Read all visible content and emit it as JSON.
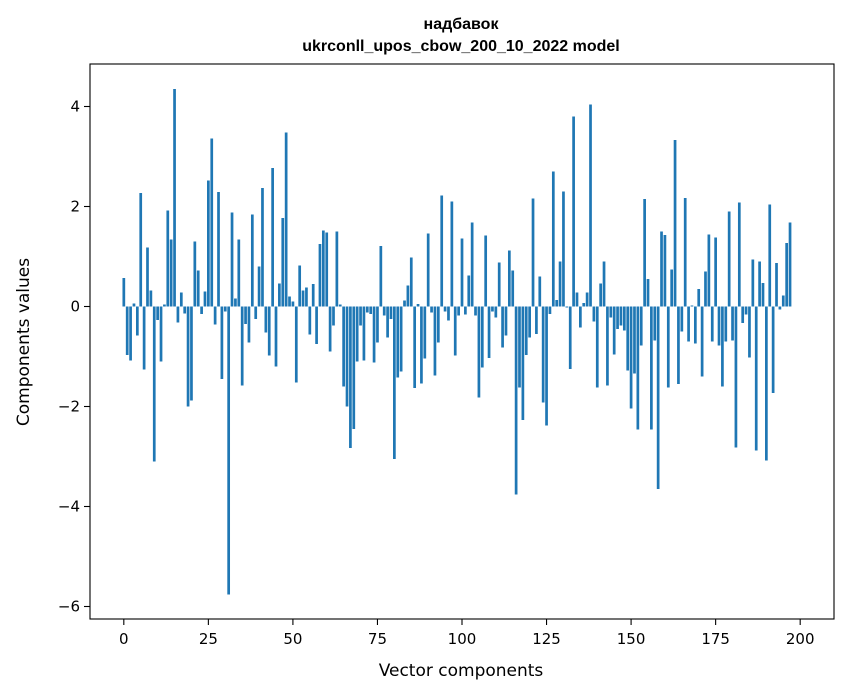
{
  "chart_data": {
    "type": "bar",
    "title": "надбавок",
    "subtitle": "ukrconll_upos_cbow_200_10_2022 model",
    "xlabel": "Vector components",
    "ylabel": "Components values",
    "xlim": [
      -10,
      210
    ],
    "ylim": [
      -6.25,
      4.85
    ],
    "xticks": [
      0,
      25,
      50,
      75,
      100,
      125,
      150,
      175,
      200
    ],
    "yticks": [
      -6,
      -4,
      -2,
      0,
      2,
      4
    ],
    "ytick_labels": [
      "−6",
      "−4",
      "−2",
      "0",
      "2",
      "4"
    ],
    "bar_color": "#1f77b4",
    "grid": false,
    "values": [
      0.57,
      -0.97,
      -1.08,
      0.06,
      -0.58,
      2.27,
      -1.26,
      1.18,
      0.32,
      -3.1,
      -0.27,
      -1.1,
      0.04,
      1.92,
      1.34,
      4.35,
      -0.32,
      0.28,
      -0.14,
      -2.0,
      -1.88,
      1.3,
      0.72,
      -0.15,
      0.3,
      2.52,
      3.36,
      -0.36,
      2.29,
      -1.45,
      -0.1,
      -5.76,
      1.88,
      0.16,
      1.34,
      -1.58,
      -0.35,
      -0.72,
      1.84,
      -0.25,
      0.8,
      2.37,
      -0.52,
      -0.98,
      2.77,
      -1.2,
      0.46,
      1.77,
      3.48,
      0.2,
      0.1,
      -1.52,
      0.82,
      0.32,
      0.38,
      -0.56,
      0.45,
      -0.75,
      1.25,
      1.52,
      1.48,
      -0.9,
      -0.38,
      1.5,
      0.04,
      -1.6,
      -2.0,
      -2.83,
      -2.45,
      -1.1,
      -0.38,
      -1.08,
      -0.12,
      -0.15,
      -1.12,
      -0.72,
      1.21,
      -0.18,
      -0.62,
      -0.25,
      -3.05,
      -1.42,
      -1.3,
      0.12,
      0.42,
      0.98,
      -1.63,
      0.05,
      -1.54,
      -1.04,
      1.46,
      -0.12,
      -1.38,
      -0.72,
      2.22,
      -0.1,
      -0.28,
      2.1,
      -0.98,
      -0.18,
      1.36,
      -0.16,
      0.62,
      1.68,
      -0.18,
      -1.82,
      -1.22,
      1.42,
      -1.03,
      -0.1,
      -0.22,
      0.88,
      -0.82,
      -0.58,
      1.12,
      0.72,
      -3.76,
      -1.62,
      -2.27,
      -0.97,
      -0.62,
      2.16,
      -0.55,
      0.6,
      -1.92,
      -2.38,
      -0.15,
      2.7,
      0.13,
      0.9,
      2.3,
      -0.02,
      -1.25,
      3.8,
      0.28,
      -0.42,
      0.07,
      0.28,
      4.04,
      -0.3,
      -1.62,
      0.46,
      0.9,
      -1.58,
      -0.22,
      -0.96,
      -0.45,
      -0.38,
      -0.48,
      -1.28,
      -2.04,
      -1.34,
      -2.46,
      -0.78,
      2.15,
      0.55,
      -2.46,
      -0.68,
      -3.65,
      1.5,
      1.43,
      -1.62,
      0.74,
      3.33,
      -1.55,
      -0.5,
      2.17,
      -0.7,
      0.02,
      -0.74,
      0.35,
      -1.4,
      0.7,
      1.44,
      -0.7,
      1.38,
      -0.78,
      -1.6,
      -0.7,
      1.9,
      -0.68,
      -2.82,
      2.08,
      -0.33,
      -0.16,
      -1.02,
      0.94,
      -2.88,
      0.9,
      0.47,
      -3.08,
      2.04,
      -1.73,
      0.87,
      -0.06,
      0.22,
      1.27,
      1.68
    ]
  }
}
